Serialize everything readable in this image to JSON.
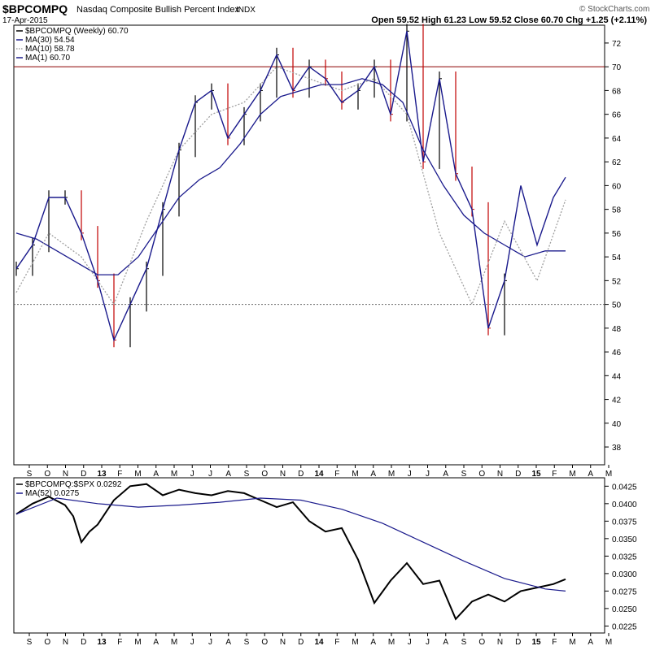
{
  "header": {
    "symbol": "$BPCOMPQ",
    "name": "Nasdaq Composite Bullish Percent Index",
    "exchange": "INDX",
    "date": "17-Apr-2015",
    "quote": "Open 59.52  High 61.23  Low 59.52  Close 60.70  Chg +1.25 (+2.11%)",
    "watermark": "© StockCharts.com"
  },
  "colors": {
    "price_up": "#000000",
    "price_down": "#c00000",
    "ma30": "#1a1a8c",
    "ma10": "#a0a0a0",
    "ma1": "#1a1a8c",
    "ref70": "#8b0000",
    "ratio": "#000000",
    "ratio_ma": "#1a1a8c"
  },
  "chart_data": [
    {
      "type": "line",
      "panel": "main",
      "ylim": [
        36.5,
        73.5
      ],
      "yticks": [
        38,
        40,
        42,
        44,
        46,
        48,
        50,
        52,
        54,
        56,
        58,
        60,
        62,
        64,
        66,
        68,
        70,
        72
      ],
      "reference_lines": [
        {
          "value": 70,
          "style": "solid"
        },
        {
          "value": 50,
          "style": "dotted"
        }
      ],
      "legend": [
        {
          "label": "$BPCOMPQ (Weekly) 60.70",
          "style": "ohlc"
        },
        {
          "label": "MA(30) 54.54",
          "style": "solid"
        },
        {
          "label": "MA(10) 58.78",
          "style": "dotted"
        },
        {
          "label": "MA(1) 60.70",
          "style": "solid"
        }
      ],
      "series": [
        {
          "name": "$BPCOMPQ (Weekly)",
          "style": "ohlc",
          "x": [
            0,
            4,
            8,
            12,
            16,
            20,
            24,
            28,
            32,
            36,
            40,
            44,
            48,
            52,
            56,
            60,
            64,
            68,
            72,
            76,
            80,
            84,
            88,
            92,
            96,
            100,
            104,
            108,
            112,
            116,
            120
          ],
          "values": [
            53,
            55,
            59,
            59,
            56,
            52,
            47,
            50,
            53,
            58,
            63,
            67,
            68,
            64,
            66,
            68,
            71,
            68,
            70,
            69,
            67,
            68,
            70,
            66,
            73,
            62,
            69,
            61,
            58,
            48,
            52
          ]
        },
        {
          "name": "MA(30)",
          "style": "solid",
          "x": [
            0,
            5,
            10,
            15,
            20,
            25,
            30,
            35,
            40,
            45,
            50,
            55,
            60,
            65,
            70,
            75,
            80,
            85,
            90,
            95,
            100,
            105,
            110,
            115,
            120,
            125,
            130,
            135
          ],
          "values": [
            56,
            55.5,
            54.5,
            53.5,
            52.5,
            52.5,
            54,
            56.5,
            59,
            60.5,
            61.5,
            63.5,
            66,
            67.5,
            68,
            68.5,
            68.5,
            69,
            68.5,
            67,
            63,
            60,
            57.5,
            56,
            55,
            54,
            54.5,
            54.5
          ]
        },
        {
          "name": "MA(10)",
          "style": "dotted",
          "x": [
            0,
            8,
            16,
            24,
            32,
            40,
            48,
            56,
            64,
            72,
            80,
            88,
            96,
            104,
            112,
            120,
            128,
            135
          ],
          "values": [
            51,
            56,
            54,
            50,
            57,
            63,
            66,
            67,
            70,
            69,
            68,
            69,
            66,
            56,
            50,
            57,
            52,
            58.8
          ]
        },
        {
          "name": "MA(1)",
          "style": "solid",
          "x": [
            0,
            4,
            8,
            12,
            16,
            20,
            24,
            28,
            32,
            36,
            40,
            44,
            48,
            52,
            56,
            60,
            64,
            68,
            72,
            76,
            80,
            84,
            88,
            92,
            96,
            100,
            104,
            108,
            112,
            116,
            120,
            124,
            128,
            132,
            135
          ],
          "values": [
            53,
            55,
            59,
            59,
            56,
            52,
            47,
            50,
            53,
            58,
            63,
            67,
            68,
            64,
            66,
            68,
            71,
            68,
            70,
            69,
            67,
            68,
            70,
            66,
            73,
            62,
            69,
            61,
            58,
            48,
            52,
            60,
            55,
            59,
            60.7
          ]
        }
      ]
    },
    {
      "type": "line",
      "panel": "ratio",
      "ylim": [
        0.0215,
        0.0437
      ],
      "yticks": [
        0.0225,
        0.025,
        0.0275,
        0.03,
        0.0325,
        0.035,
        0.0375,
        0.04,
        0.0425
      ],
      "ytick_labels": [
        "0.0225",
        "0.0250",
        "0.0275",
        "0.0300",
        "0.0325",
        "0.0350",
        "0.0375",
        "0.0400",
        "0.0425"
      ],
      "legend": [
        {
          "label": "$BPCOMPQ:$SPX 0.0292",
          "style": "solid"
        },
        {
          "label": "MA(52) 0.0275",
          "style": "solid"
        }
      ],
      "series": [
        {
          "name": "$BPCOMPQ:$SPX",
          "x": [
            0,
            4,
            8,
            12,
            14,
            16,
            18,
            20,
            24,
            28,
            32,
            36,
            40,
            44,
            48,
            52,
            56,
            60,
            64,
            68,
            72,
            76,
            80,
            84,
            88,
            92,
            96,
            100,
            104,
            108,
            112,
            116,
            120,
            124,
            128,
            132,
            135
          ],
          "values": [
            0.0385,
            0.04,
            0.041,
            0.0398,
            0.0382,
            0.0345,
            0.036,
            0.037,
            0.0405,
            0.0425,
            0.0428,
            0.0412,
            0.042,
            0.0415,
            0.0412,
            0.0418,
            0.0415,
            0.0405,
            0.0395,
            0.0402,
            0.0375,
            0.036,
            0.0365,
            0.032,
            0.0258,
            0.029,
            0.0315,
            0.0285,
            0.029,
            0.0235,
            0.026,
            0.027,
            0.026,
            0.0275,
            0.028,
            0.0285,
            0.0292
          ]
        },
        {
          "name": "MA(52)",
          "x": [
            0,
            10,
            20,
            30,
            40,
            50,
            60,
            70,
            80,
            90,
            100,
            110,
            120,
            130,
            135
          ],
          "values": [
            0.0385,
            0.0408,
            0.04,
            0.0395,
            0.0398,
            0.0402,
            0.0408,
            0.0405,
            0.0392,
            0.0372,
            0.0345,
            0.0318,
            0.0293,
            0.0278,
            0.0275
          ]
        }
      ]
    }
  ],
  "x_axis": {
    "labels": [
      "S",
      "O",
      "N",
      "D",
      "13",
      "F",
      "M",
      "A",
      "M",
      "J",
      "J",
      "A",
      "S",
      "O",
      "N",
      "D",
      "14",
      "F",
      "M",
      "A",
      "M",
      "J",
      "J",
      "A",
      "S",
      "O",
      "N",
      "D",
      "15",
      "F",
      "M",
      "A",
      "M"
    ],
    "year_labels": [
      "13",
      "14",
      "15"
    ]
  }
}
